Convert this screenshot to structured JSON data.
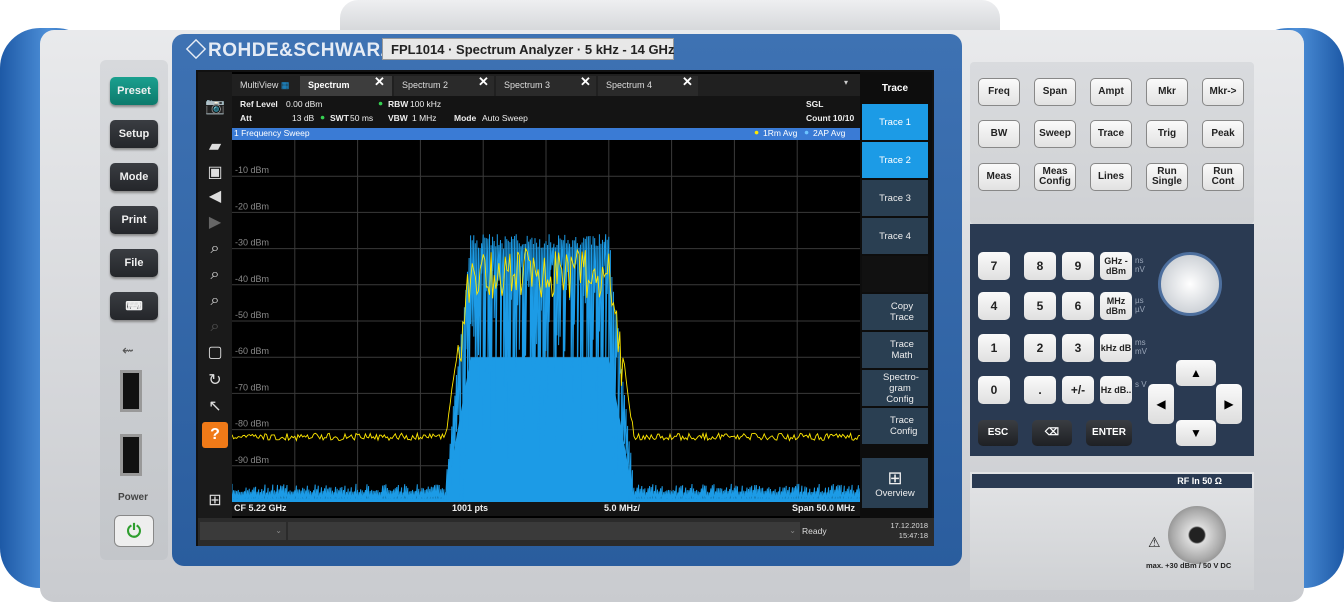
{
  "brand": "ROHDE&SCHWARZ",
  "model": "FPL1014 · Spectrum Analyzer · 5 kHz - 14 GHz",
  "left_keys": [
    "Preset",
    "Setup",
    "Mode",
    "Print",
    "File"
  ],
  "power_label": "Power",
  "tabs": [
    {
      "label": "MultiView"
    },
    {
      "label": "Spectrum",
      "active": true
    },
    {
      "label": "Spectrum 2"
    },
    {
      "label": "Spectrum 3"
    },
    {
      "label": "Spectrum 4"
    }
  ],
  "info": {
    "ref_level_label": "Ref Level",
    "ref_level": "0.00 dBm",
    "att_label": "Att",
    "att": "13 dB",
    "swt_label": "SWT",
    "swt": "50 ms",
    "rbw_label": "RBW",
    "rbw": "100 kHz",
    "vbw_label": "VBW",
    "vbw": "1 MHz",
    "mode_label": "Mode",
    "mode": "Auto Sweep",
    "sgl": "SGL",
    "count": "Count 10/10"
  },
  "diagram": {
    "title": "1 Frequency Sweep",
    "trace1": "1Rm Avg",
    "trace2": "2AP Avg"
  },
  "y_labels": [
    "-10 dBm",
    "-20 dBm",
    "-30 dBm",
    "-40 dBm",
    "-50 dBm",
    "-60 dBm",
    "-70 dBm",
    "-80 dBm",
    "-90 dBm"
  ],
  "status": {
    "cf": "CF 5.22 GHz",
    "pts": "1001 pts",
    "div": "5.0 MHz/",
    "span": "Span 50.0 MHz"
  },
  "msgbar": {
    "ready": "Ready",
    "date": "17.12.2018",
    "time": "15:47:18"
  },
  "softkeys": {
    "title": "Trace",
    "items": [
      "Trace 1",
      "Trace 2",
      "Trace 3",
      "Trace 4",
      "",
      "Copy Trace",
      "Trace Math",
      "Spectro-gram Config",
      "Trace Config",
      "Overview"
    ]
  },
  "right_keys": [
    [
      "Freq",
      "Span",
      "Ampt",
      "Mkr",
      "Mkr->"
    ],
    [
      "BW",
      "Sweep",
      "Trace",
      "Trig",
      "Peak"
    ],
    [
      "Meas",
      "Meas Config",
      "Lines",
      "Run Single",
      "Run Cont"
    ]
  ],
  "numpad": [
    [
      "7",
      "8",
      "9"
    ],
    [
      "4",
      "5",
      "6"
    ],
    [
      "1",
      "2",
      "3"
    ],
    [
      "0",
      ".",
      "+/-"
    ]
  ],
  "unit_keys": [
    {
      "label": "GHz -dBm",
      "sub": "ns nV"
    },
    {
      "label": "MHz dBm",
      "sub": "µs µV"
    },
    {
      "label": "kHz dB",
      "sub": "ms mV"
    },
    {
      "label": "Hz dB..",
      "sub": "s V"
    }
  ],
  "bottom_keys": [
    "ESC",
    "ENTER"
  ],
  "rf_in": "RF In 50 Ω",
  "rf_warning": "max. +30 dBm / 50 V DC",
  "colors": {
    "trace1": "#ffe800",
    "trace2": "#1c9be6",
    "accent": "#1c9be6"
  },
  "chart_data": {
    "type": "line",
    "x_unit": "MHz (offset from CF)",
    "ylim": [
      -100,
      0
    ],
    "ylabel": "dBm",
    "series": [
      {
        "name": "1Rm Avg",
        "color": "#ffe800",
        "level_floor": -81,
        "level_top": -30
      },
      {
        "name": "2AP Avg",
        "color": "#1c9be6",
        "level_floor": -95,
        "level_top": -26
      }
    ]
  }
}
